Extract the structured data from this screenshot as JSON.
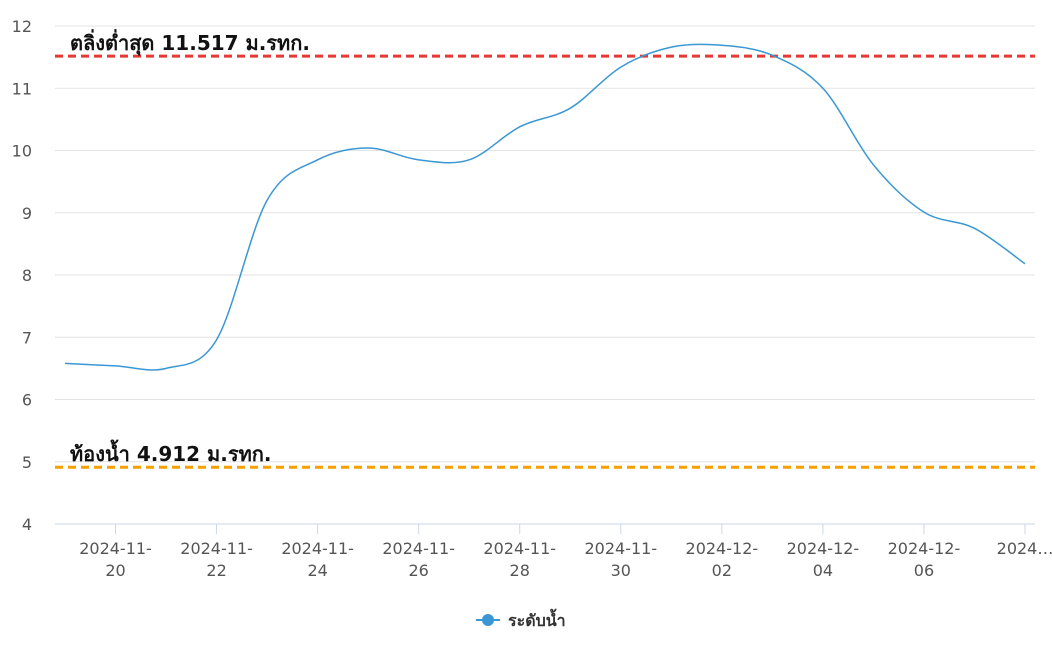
{
  "chart_data": {
    "type": "line",
    "x": [
      "2024-11-19",
      "2024-11-20",
      "2024-11-21",
      "2024-11-22",
      "2024-11-23",
      "2024-11-24",
      "2024-11-25",
      "2024-11-26",
      "2024-11-27",
      "2024-11-28",
      "2024-11-29",
      "2024-11-30",
      "2024-12-01",
      "2024-12-02",
      "2024-12-03",
      "2024-12-04",
      "2024-12-05",
      "2024-12-06",
      "2024-12-07",
      "2024-12-08"
    ],
    "series": [
      {
        "name": "ระดับน้ำ",
        "color": "#3a97d4",
        "values": [
          6.58,
          6.54,
          6.5,
          6.96,
          9.2,
          9.85,
          10.04,
          9.85,
          9.85,
          10.38,
          10.68,
          11.34,
          11.66,
          11.69,
          11.53,
          11.0,
          9.77,
          9.01,
          8.75,
          8.18
        ]
      }
    ],
    "xlim": [
      "2024-11-19",
      "2024-12-08"
    ],
    "xticks": [
      {
        "value": "2024-11-20",
        "label": "2024-11-20"
      },
      {
        "value": "2024-11-22",
        "label": "2024-11-22"
      },
      {
        "value": "2024-11-24",
        "label": "2024-11-24"
      },
      {
        "value": "2024-11-26",
        "label": "2024-11-26"
      },
      {
        "value": "2024-11-28",
        "label": "2024-11-28"
      },
      {
        "value": "2024-11-30",
        "label": "2024-11-30"
      },
      {
        "value": "2024-12-02",
        "label": "2024-12-02"
      },
      {
        "value": "2024-12-04",
        "label": "2024-12-04"
      },
      {
        "value": "2024-12-06",
        "label": "2024-12-06"
      },
      {
        "value": "2024-12-08",
        "label": "2024…"
      }
    ],
    "ylim": [
      4,
      12
    ],
    "yticks": [
      4,
      5,
      6,
      7,
      8,
      9,
      10,
      11,
      12
    ],
    "grid": true,
    "annotations": [
      {
        "value": 11.517,
        "label": "ตลิ่งต่ำสุด 11.517 ม.รทก.",
        "color": "#e53935"
      },
      {
        "value": 4.912,
        "label": "ท้องน้ำ 4.912 ม.รทก.",
        "color": "#f5a000"
      }
    ],
    "legend": "bottom"
  }
}
